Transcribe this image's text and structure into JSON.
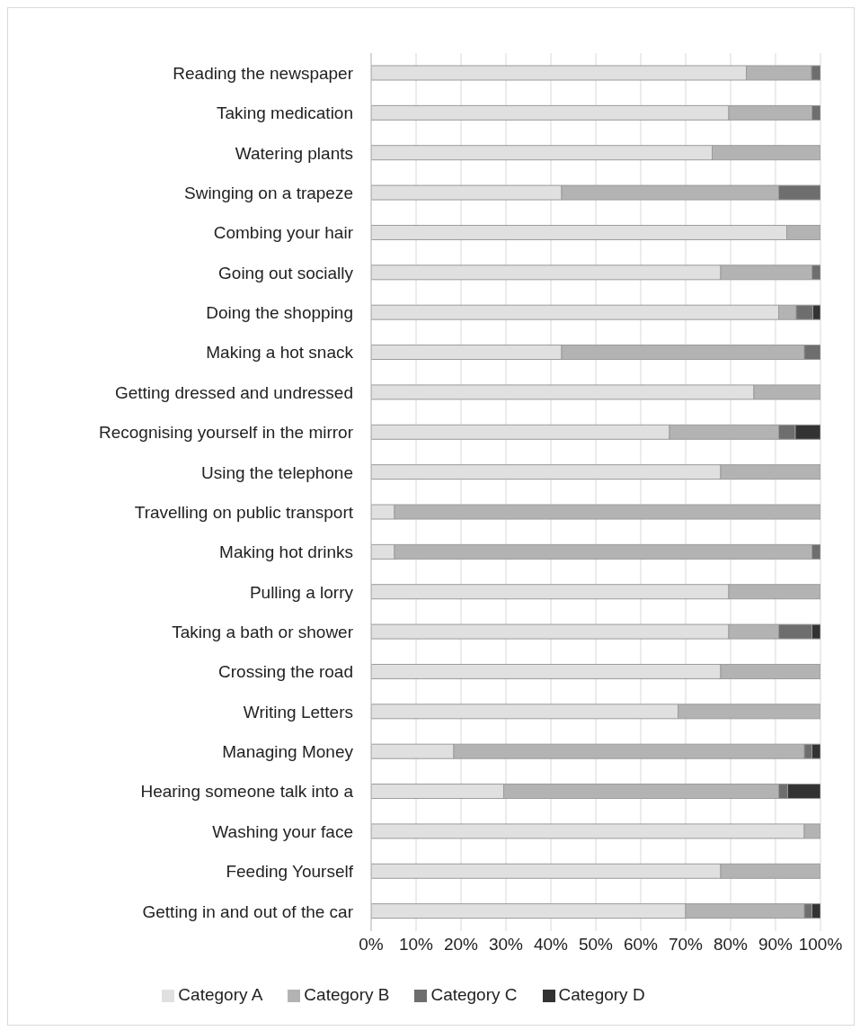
{
  "chart_data": {
    "type": "bar",
    "orientation": "horizontal",
    "stacked": true,
    "categories": [
      "Reading the newspaper",
      "Taking medication",
      "Watering plants",
      "Swinging on a trapeze",
      "Combing your hair",
      "Going out socially",
      "Doing the shopping",
      "Making a hot snack",
      "Getting dressed and undressed",
      "Recognising yourself in the mirror",
      "Using the telephone",
      "Travelling on public transport",
      "Making hot drinks",
      "Pulling a lorry",
      "Taking a bath or shower",
      "Crossing the road",
      "Writing Letters",
      "Managing Money",
      "Hearing someone talk into a",
      "Washing your face",
      "Feeding Yourself",
      "Getting in and out of the car"
    ],
    "series": [
      {
        "name": "Category A",
        "color": "#e0e0e0",
        "values": [
          83.5,
          79.6,
          75.9,
          42.4,
          92.5,
          77.8,
          90.7,
          42.4,
          85.2,
          66.4,
          77.8,
          5.2,
          5.2,
          79.6,
          79.6,
          77.8,
          68.3,
          18.4,
          29.5,
          96.4,
          77.8,
          70.0
        ]
      },
      {
        "name": "Category B",
        "color": "#b3b3b3",
        "values": [
          14.5,
          18.5,
          24.1,
          48.3,
          7.5,
          20.3,
          3.9,
          54.0,
          14.8,
          24.3,
          22.2,
          94.8,
          92.9,
          20.4,
          11.1,
          22.2,
          31.7,
          78.0,
          61.2,
          3.6,
          22.2,
          26.4
        ]
      },
      {
        "name": "Category C",
        "color": "#6e6e6e",
        "values": [
          2.0,
          1.9,
          0,
          9.3,
          0,
          1.9,
          3.7,
          3.6,
          0,
          3.7,
          0,
          0,
          1.9,
          0,
          7.4,
          0,
          0,
          1.7,
          2.0,
          0,
          0,
          1.7
        ]
      },
      {
        "name": "Category D",
        "color": "#333333",
        "values": [
          0,
          0,
          0,
          0,
          0,
          0,
          1.7,
          0,
          0,
          5.6,
          0,
          0,
          0,
          0,
          1.9,
          0,
          0,
          1.9,
          7.3,
          0,
          0,
          1.9
        ]
      }
    ],
    "xlim": [
      0,
      100
    ],
    "xticks": [
      {
        "value": 0,
        "label": "0%"
      },
      {
        "value": 10,
        "label": "10%"
      },
      {
        "value": 20,
        "label": "20%"
      },
      {
        "value": 30,
        "label": "30%"
      },
      {
        "value": 40,
        "label": "40%"
      },
      {
        "value": 50,
        "label": "50%"
      },
      {
        "value": 60,
        "label": "60%"
      },
      {
        "value": 70,
        "label": "70%"
      },
      {
        "value": 80,
        "label": "80%"
      },
      {
        "value": 90,
        "label": "90%"
      },
      {
        "value": 100,
        "label": "100%"
      }
    ],
    "grid": "x",
    "legend": "bottom"
  }
}
